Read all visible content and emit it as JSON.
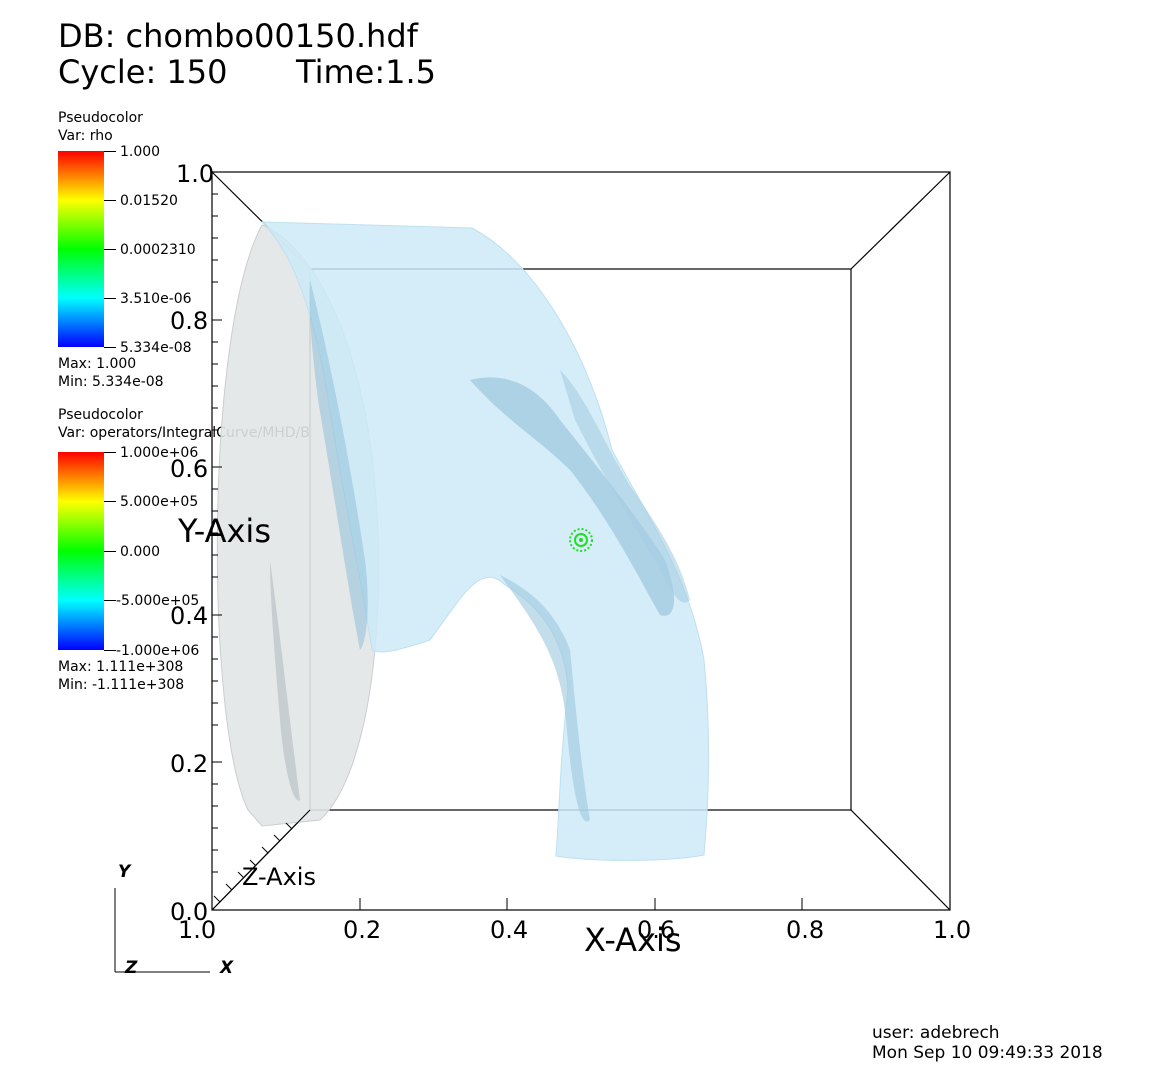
{
  "header": {
    "db": "DB: chombo00150.hdf",
    "cycle": "Cycle: 150",
    "time": "Time:1.5"
  },
  "legends": [
    {
      "plot": "Pseudocolor",
      "var": "Var: rho",
      "ticks": [
        "1.000",
        "0.01520",
        "0.0002310",
        "3.510e-06",
        "5.334e-08"
      ],
      "max": "Max:  1.000",
      "min": "Min:  5.334e-08"
    },
    {
      "plot": "Pseudocolor",
      "var": "Var: operators/IntegralCurve/MHD/B",
      "ticks": [
        "1.000e+06",
        "5.000e+05",
        "0.000",
        "-5.000e+05",
        "-1.000e+06"
      ],
      "max": "Max:  1.111e+308",
      "min": "Min: -1.111e+308"
    }
  ],
  "axes": {
    "x_title": "X-Axis",
    "y_title": "Y-Axis",
    "z_title": "Z-Axis",
    "x_ticks": [
      "1.0",
      "0.2",
      "0.4",
      "0.6",
      "0.8",
      "1.0"
    ],
    "y_ticks": [
      "1.0",
      "0.8",
      "0.6",
      "0.4",
      "0.2",
      "0.0"
    ],
    "triad": {
      "y": "Y",
      "z": "Z",
      "x": "X"
    }
  },
  "footer": {
    "user": "user: adebrech",
    "date": "Mon Sep 10 09:49:33 2018"
  },
  "colors": {
    "surface": "#cdeaf7",
    "surface_dark": "#8fbfd8",
    "disc": "#e4e6e8",
    "seed": "#22dd22"
  }
}
